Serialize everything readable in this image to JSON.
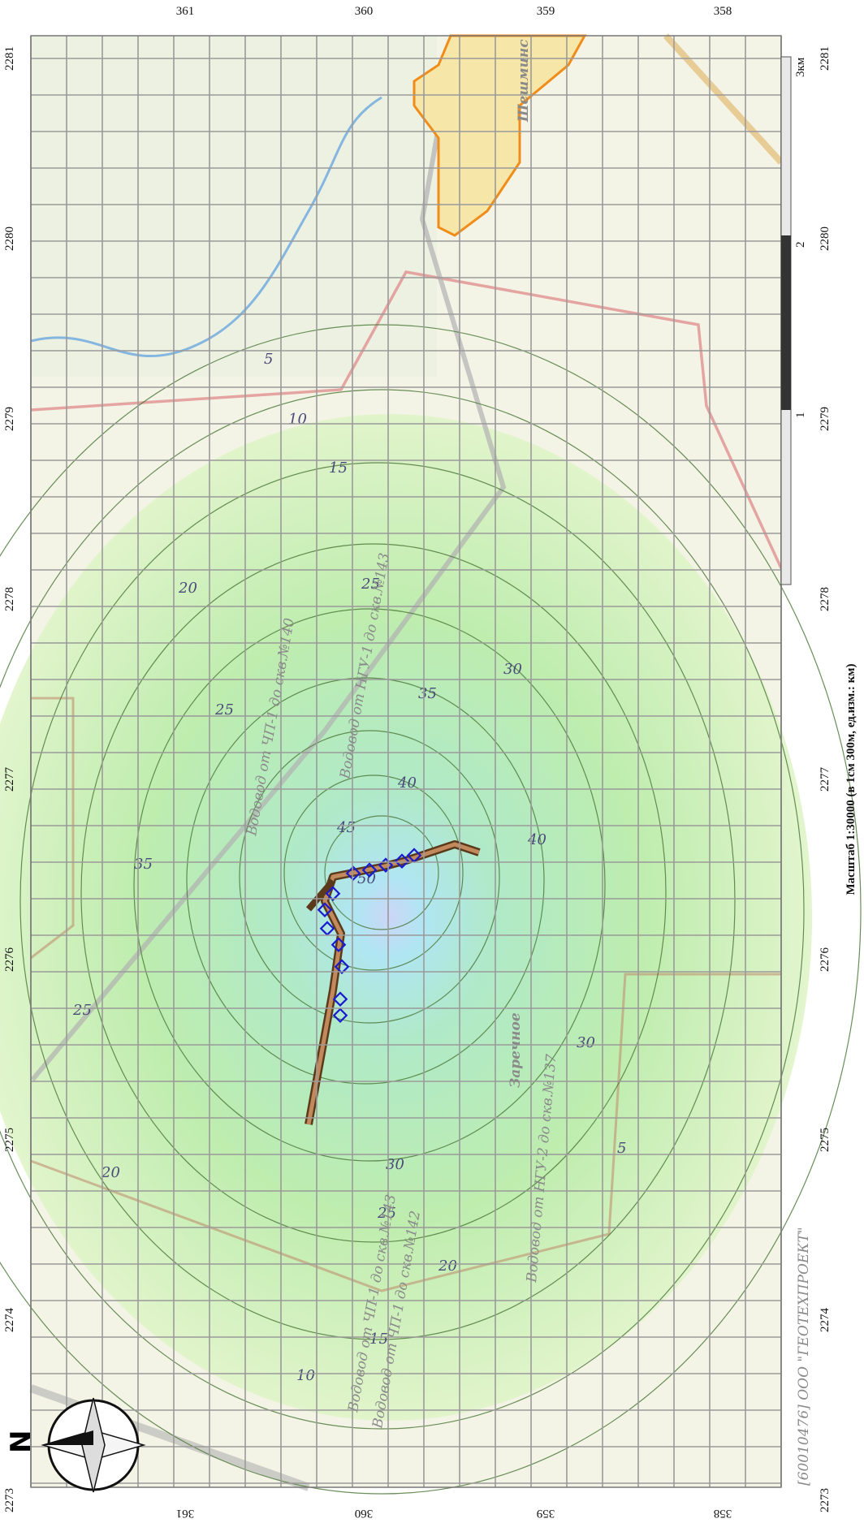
{
  "map": {
    "grid_labels_top": [
      "361",
      "360",
      "359",
      "358"
    ],
    "grid_labels_bottom": [
      "361",
      "360",
      "359",
      "358"
    ],
    "grid_labels_left": [
      "2281",
      "2280",
      "2279",
      "2278",
      "2277",
      "2276",
      "2275",
      "2274",
      "2273"
    ],
    "grid_labels_right": [
      "2281",
      "2280",
      "2279",
      "2278",
      "2277",
      "2276",
      "2275",
      "2274",
      "2273"
    ],
    "contour_labels": [
      "5",
      "10",
      "15",
      "20",
      "25",
      "30",
      "35",
      "40",
      "45",
      "50"
    ],
    "scale_text": "Масштаб 1:30000 (в 1см 300м, ед.изм.: км)",
    "scale_ticks": [
      "3км",
      "2",
      "1"
    ],
    "copyright": "[60010476] ООО \"ГЕОТЕХПРОЕКТ\"",
    "town_name": "Шешминс",
    "village_name": "Заречное",
    "road_labels": [
      "Водовод от ЧП-1 до скв.№140",
      "Водовод от НГУ-1 до скв.№143",
      "Водовод от ЧП-1 до скв.№142",
      "Водовод от ЧП-1 до скв.№143",
      "Водовод от НГУ-2 до скв.№137"
    ],
    "compass_letter": "N",
    "colors": {
      "pollution_low": "#b8eaa8",
      "pollution_high": "#a8d8f8",
      "peak": "#d4c8f0",
      "pipeline": "#8b5a2b",
      "town_border": "#f08c1a",
      "boundary": "#d88080",
      "markers": "#1a1ad0"
    }
  }
}
